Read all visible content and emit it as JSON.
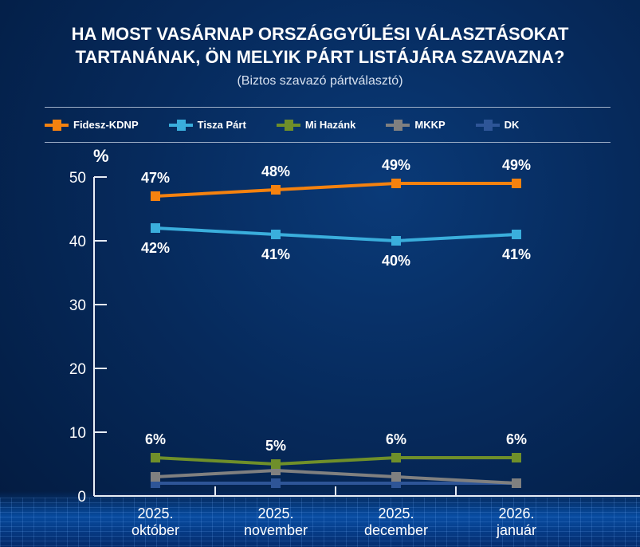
{
  "title_line1": "HA MOST VASÁRNAP ORSZÁGGYŰLÉSI VÁLASZTÁSOKAT",
  "title_line2": "TARTANÁNAK, ÖN MELYIK PÁRT LISTÁJÁRA SZAVAZNA?",
  "subtitle": "(Biztos szavazó pártválasztó)",
  "chart_data": {
    "type": "line",
    "title": "HA MOST VASÁRNAP ORSZÁGGYŰLÉSI VÁLASZTÁSOKAT TARTANÁNAK, ÖN MELYIK PÁRT LISTÁJÁRA SZAVAZNA?",
    "subtitle": "(Biztos szavazó pártválasztó)",
    "ylabel": "%",
    "ylim": [
      0,
      50
    ],
    "yticks": [
      "0",
      "10",
      "20",
      "30",
      "40",
      "50"
    ],
    "categories": [
      [
        "2025.",
        "október"
      ],
      [
        "2025.",
        "november"
      ],
      [
        "2025.",
        "december"
      ],
      [
        "2026.",
        "január"
      ]
    ],
    "legend_position": "top",
    "grid": false,
    "series": [
      {
        "name": "Fidesz-KDNP",
        "color": "#f5820f",
        "values": [
          47,
          48,
          49,
          49
        ],
        "labels": [
          "47%",
          "48%",
          "49%",
          "49%"
        ],
        "label_pos": "above"
      },
      {
        "name": "Tisza Párt",
        "color": "#3aaedc",
        "values": [
          42,
          41,
          40,
          41
        ],
        "labels": [
          "42%",
          "41%",
          "40%",
          "41%"
        ],
        "label_pos": "below"
      },
      {
        "name": "Mi Hazánk",
        "color": "#6f8f2a",
        "values": [
          6,
          5,
          6,
          6
        ],
        "labels": [
          "6%",
          "5%",
          "6%",
          "6%"
        ],
        "label_pos": "above"
      },
      {
        "name": "MKKP",
        "color": "#808080",
        "values": [
          3,
          4,
          3,
          2
        ]
      },
      {
        "name": "DK",
        "color": "#2e5597",
        "values": [
          2,
          2,
          2,
          2
        ]
      }
    ]
  }
}
